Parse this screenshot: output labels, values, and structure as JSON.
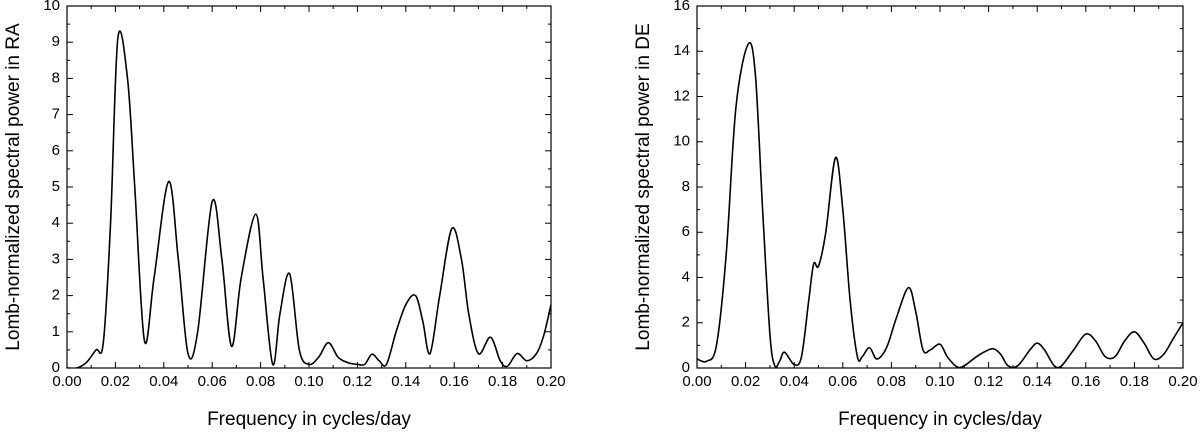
{
  "chart_data": [
    {
      "type": "line",
      "xlabel": "Frequency in cycles/day",
      "ylabel": "Lomb-normalized spectral power in RA",
      "color": "#000000",
      "x": [
        0,
        0.004,
        0.008,
        0.012,
        0.015,
        0.018,
        0.021,
        0.025,
        0.028,
        0.032,
        0.036,
        0.042,
        0.046,
        0.05,
        0.054,
        0.06,
        0.064,
        0.068,
        0.072,
        0.078,
        0.081,
        0.085,
        0.088,
        0.092,
        0.096,
        0.1,
        0.104,
        0.108,
        0.112,
        0.116,
        0.12,
        0.123,
        0.126,
        0.129,
        0.132,
        0.136,
        0.14,
        0.144,
        0.147,
        0.15,
        0.154,
        0.159,
        0.163,
        0.166,
        0.17,
        0.175,
        0.179,
        0.182,
        0.186,
        0.19,
        0.194,
        0.197,
        0.2
      ],
      "values": [
        0,
        0,
        0.15,
        0.5,
        0.7,
        4,
        9.1,
        8,
        5,
        0.75,
        2.5,
        5.15,
        3,
        0.4,
        1,
        4.6,
        3,
        0.6,
        2.5,
        4.25,
        2.5,
        0.1,
        1.5,
        2.6,
        0.5,
        0.1,
        0.3,
        0.7,
        0.3,
        0.15,
        0.1,
        0.1,
        0.38,
        0.2,
        0.1,
        1,
        1.75,
        2,
        1.3,
        0.4,
        2,
        3.85,
        3,
        1.5,
        0.4,
        0.85,
        0.2,
        0.05,
        0.4,
        0.2,
        0.4,
        0.9,
        1.75
      ],
      "xlim": [
        0,
        0.2
      ],
      "ylim": [
        0,
        10
      ],
      "xticks": [
        {
          "value": 0,
          "label": "0.00"
        },
        {
          "value": 0.02,
          "label": "0.02"
        },
        {
          "value": 0.04,
          "label": "0.04"
        },
        {
          "value": 0.06,
          "label": "0.06"
        },
        {
          "value": 0.08,
          "label": "0.08"
        },
        {
          "value": 0.1,
          "label": "0.10"
        },
        {
          "value": 0.12,
          "label": "0.12"
        },
        {
          "value": 0.14,
          "label": "0.14"
        },
        {
          "value": 0.16,
          "label": "0.16"
        },
        {
          "value": 0.18,
          "label": "0.18"
        },
        {
          "value": 0.2,
          "label": "0.20"
        }
      ],
      "yticks": [
        0,
        1,
        2,
        3,
        4,
        5,
        6,
        7,
        8,
        9,
        10
      ]
    },
    {
      "type": "line",
      "xlabel": "Frequency in cycles/day",
      "ylabel": "Lomb-normalized spectral power in DE",
      "color": "#000000",
      "x": [
        0,
        0.004,
        0.008,
        0.012,
        0.016,
        0.021,
        0.024,
        0.027,
        0.03,
        0.032,
        0.034,
        0.036,
        0.04,
        0.043,
        0.046,
        0.048,
        0.05,
        0.053,
        0.057,
        0.06,
        0.063,
        0.066,
        0.068,
        0.071,
        0.074,
        0.078,
        0.082,
        0.087,
        0.09,
        0.093,
        0.096,
        0.1,
        0.103,
        0.107,
        0.11,
        0.115,
        0.119,
        0.122,
        0.125,
        0.128,
        0.132,
        0.137,
        0.14,
        0.143,
        0.147,
        0.15,
        0.155,
        0.16,
        0.164,
        0.168,
        0.172,
        0.176,
        0.18,
        0.184,
        0.188,
        0.192,
        0.196,
        0.2
      ],
      "values": [
        0.4,
        0.3,
        1,
        5,
        11.5,
        14.3,
        13,
        7,
        1.5,
        0.1,
        0.3,
        0.7,
        0.15,
        0.5,
        3,
        4.6,
        4.5,
        6,
        9.3,
        7,
        3,
        0.5,
        0.5,
        0.9,
        0.4,
        0.9,
        2.2,
        3.55,
        2.5,
        0.8,
        0.8,
        1.05,
        0.5,
        0.05,
        0.1,
        0.5,
        0.75,
        0.85,
        0.6,
        0.1,
        0.1,
        0.8,
        1.1,
        0.8,
        0.1,
        0.1,
        0.8,
        1.5,
        1.2,
        0.5,
        0.5,
        1.2,
        1.6,
        1.1,
        0.4,
        0.6,
        1.3,
        2
      ],
      "xlim": [
        0,
        0.2
      ],
      "ylim": [
        0,
        16
      ],
      "xticks": [
        {
          "value": 0,
          "label": "0.00"
        },
        {
          "value": 0.02,
          "label": "0.02"
        },
        {
          "value": 0.04,
          "label": "0.04"
        },
        {
          "value": 0.06,
          "label": "0.06"
        },
        {
          "value": 0.08,
          "label": "0.08"
        },
        {
          "value": 0.1,
          "label": "0.10"
        },
        {
          "value": 0.12,
          "label": "0.12"
        },
        {
          "value": 0.14,
          "label": "0.14"
        },
        {
          "value": 0.16,
          "label": "0.16"
        },
        {
          "value": 0.18,
          "label": "0.18"
        },
        {
          "value": 0.2,
          "label": "0.20"
        }
      ],
      "yticks": [
        0,
        2,
        4,
        6,
        8,
        10,
        12,
        14,
        16
      ]
    }
  ]
}
